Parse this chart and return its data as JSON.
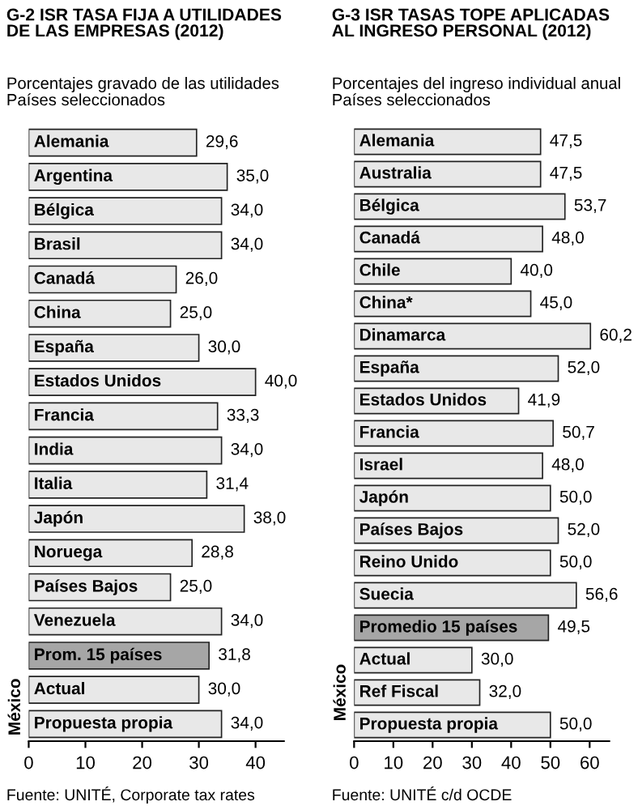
{
  "chart_data": [
    {
      "type": "bar",
      "orientation": "horizontal",
      "title": "G-2 ISR TASA FIJA A UTILIDADES\nDE LAS EMPRESAS (2012)",
      "subtitle": "Porcentajes gravado de las utilidades\nPaíses seleccionados",
      "categories": [
        "Alemania",
        "Argentina",
        "Bélgica",
        "Brasil",
        "Canadá",
        "China",
        "España",
        "Estados Unidos",
        "Francia",
        "India",
        "Italia",
        "Japón",
        "Noruega",
        "Países Bajos",
        "Venezuela",
        "Prom. 15 países",
        "Actual",
        "Propuesta propia"
      ],
      "values": [
        29.6,
        35.0,
        34.0,
        34.0,
        26.0,
        25.0,
        30.0,
        40.0,
        33.3,
        34.0,
        31.4,
        38.0,
        28.8,
        25.0,
        34.0,
        31.8,
        30.0,
        34.0
      ],
      "value_labels": [
        "29,6",
        "35,0",
        "34,0",
        "34,0",
        "26,0",
        "25,0",
        "30,0",
        "40,0",
        "33,3",
        "34,0",
        "31,4",
        "38,0",
        "28,8",
        "25,0",
        "34,0",
        "31,8",
        "30,0",
        "34,0"
      ],
      "colors": [
        "#e8e8e8",
        "#e8e8e8",
        "#e8e8e8",
        "#e8e8e8",
        "#e8e8e8",
        "#e8e8e8",
        "#e8e8e8",
        "#e8e8e8",
        "#e8e8e8",
        "#e8e8e8",
        "#e8e8e8",
        "#e8e8e8",
        "#e8e8e8",
        "#e8e8e8",
        "#e8e8e8",
        "#a6a6a6",
        "#e8e8e8",
        "#e8e8e8"
      ],
      "xlim": [
        0,
        45
      ],
      "xticks": [
        0,
        10,
        20,
        30,
        40
      ],
      "grid": false,
      "legend": false,
      "annotations": [
        "México",
        "Fuente: UNITÉ, Corporate tax rates"
      ]
    },
    {
      "type": "bar",
      "orientation": "horizontal",
      "title": "G-3 ISR TASAS TOPE APLICADAS\nAL INGRESO PERSONAL (2012)",
      "subtitle": "Porcentajes del ingreso individual anual\nPaíses seleccionados",
      "categories": [
        "Alemania",
        "Australia",
        "Bélgica",
        "Canadá",
        "Chile",
        "China*",
        "Dinamarca",
        "España",
        "Estados Unidos",
        "Francia",
        "Israel",
        "Japón",
        "Países Bajos",
        "Reino Unido",
        "Suecia",
        "Promedio 15 países",
        "Actual",
        "Ref Fiscal",
        "Propuesta propia"
      ],
      "values": [
        47.5,
        47.5,
        53.7,
        48.0,
        40.0,
        45.0,
        60.2,
        52.0,
        41.9,
        50.7,
        48.0,
        50.0,
        52.0,
        50.0,
        56.6,
        49.5,
        30.0,
        32.0,
        50.0
      ],
      "value_labels": [
        "47,5",
        "47,5",
        "53,7",
        "48,0",
        "40,0",
        "45,0",
        "60,2",
        "52,0",
        "41,9",
        "50,7",
        "48,0",
        "50,0",
        "52,0",
        "50,0",
        "56,6",
        "49,5",
        "30,0",
        "32,0",
        "50,0"
      ],
      "colors": [
        "#e8e8e8",
        "#e8e8e8",
        "#e8e8e8",
        "#e8e8e8",
        "#e8e8e8",
        "#e8e8e8",
        "#e8e8e8",
        "#e8e8e8",
        "#e8e8e8",
        "#e8e8e8",
        "#e8e8e8",
        "#e8e8e8",
        "#e8e8e8",
        "#e8e8e8",
        "#e8e8e8",
        "#a6a6a6",
        "#e8e8e8",
        "#e8e8e8",
        "#e8e8e8"
      ],
      "xlim": [
        0,
        65
      ],
      "xticks": [
        0,
        10,
        20,
        30,
        40,
        50,
        60
      ],
      "grid": false,
      "legend": false,
      "annotations": [
        "México",
        "Fuente: UNITÉ c/d OCDE"
      ]
    }
  ]
}
